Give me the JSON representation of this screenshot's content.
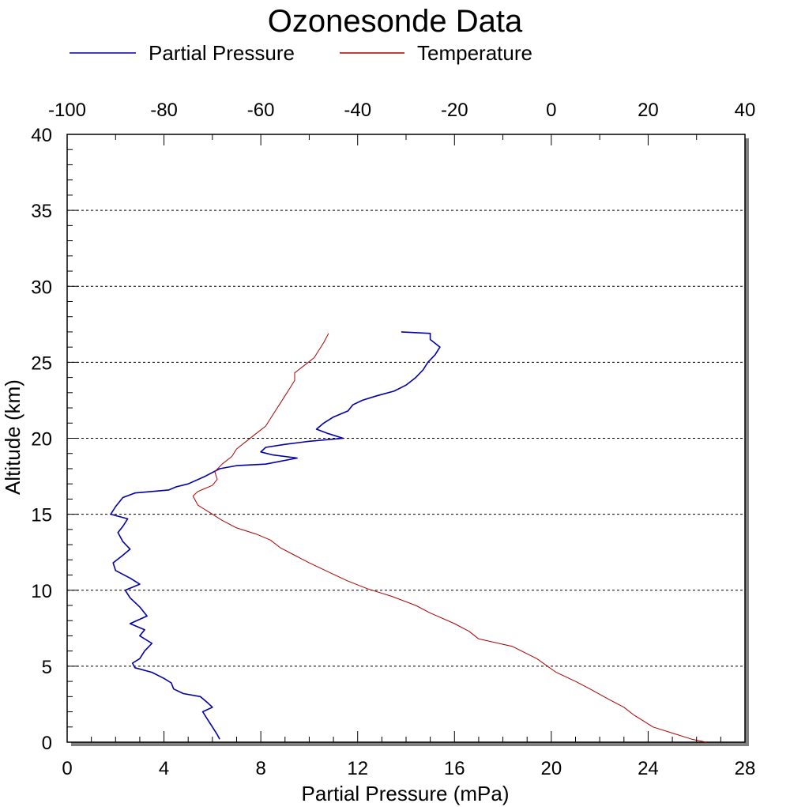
{
  "chart_data": {
    "type": "line",
    "title": "Ozonesonde Data",
    "xlabel": "Partial Pressure (mPa)",
    "ylabel": "Altitude (km)",
    "xlim": [
      0,
      28
    ],
    "x_top_lim": [
      -100,
      40
    ],
    "ylim": [
      0,
      40
    ],
    "x_ticks": [
      "0",
      "4",
      "8",
      "12",
      "16",
      "20",
      "24",
      "28"
    ],
    "x_top_ticks": [
      "-100",
      "-80",
      "-60",
      "-40",
      "-20",
      "0",
      "20",
      "40"
    ],
    "y_ticks": [
      "0",
      "5",
      "10",
      "15",
      "20",
      "25",
      "30",
      "35",
      "40"
    ],
    "grid": "horizontal dashed",
    "legend": "top",
    "series": [
      {
        "name": "Partial Pressure",
        "axis": "bottom",
        "color": "#0000aa",
        "points": [
          [
            6.3,
            0.2
          ],
          [
            6.2,
            0.5
          ],
          [
            6.0,
            1.0
          ],
          [
            5.8,
            1.5
          ],
          [
            5.6,
            2.0
          ],
          [
            6.0,
            2.3
          ],
          [
            5.8,
            2.6
          ],
          [
            5.5,
            3.0
          ],
          [
            4.8,
            3.2
          ],
          [
            4.4,
            3.5
          ],
          [
            4.3,
            3.9
          ],
          [
            4.0,
            4.2
          ],
          [
            3.5,
            4.6
          ],
          [
            2.8,
            4.9
          ],
          [
            2.7,
            5.2
          ],
          [
            3.0,
            5.5
          ],
          [
            3.2,
            6.0
          ],
          [
            3.5,
            6.5
          ],
          [
            3.0,
            7.0
          ],
          [
            3.2,
            7.4
          ],
          [
            2.6,
            7.8
          ],
          [
            3.3,
            8.3
          ],
          [
            3.0,
            8.9
          ],
          [
            2.6,
            9.5
          ],
          [
            2.4,
            10.0
          ],
          [
            3.0,
            10.4
          ],
          [
            2.6,
            10.8
          ],
          [
            2.0,
            11.3
          ],
          [
            1.9,
            11.8
          ],
          [
            2.3,
            12.3
          ],
          [
            2.6,
            12.7
          ],
          [
            2.3,
            13.2
          ],
          [
            2.1,
            13.8
          ],
          [
            2.3,
            14.2
          ],
          [
            2.5,
            14.7
          ],
          [
            1.8,
            15.0
          ],
          [
            2.0,
            15.5
          ],
          [
            2.3,
            16.1
          ],
          [
            2.8,
            16.4
          ],
          [
            3.5,
            16.5
          ],
          [
            4.2,
            16.6
          ],
          [
            4.5,
            16.8
          ],
          [
            5.0,
            17.0
          ],
          [
            5.7,
            17.5
          ],
          [
            6.3,
            18.0
          ],
          [
            7.0,
            18.2
          ],
          [
            8.2,
            18.3
          ],
          [
            9.5,
            18.7
          ],
          [
            8.5,
            18.9
          ],
          [
            8.0,
            19.1
          ],
          [
            8.2,
            19.4
          ],
          [
            9.0,
            19.6
          ],
          [
            10.0,
            19.8
          ],
          [
            11.4,
            20.0
          ],
          [
            10.8,
            20.3
          ],
          [
            10.3,
            20.6
          ],
          [
            10.6,
            21.0
          ],
          [
            11.0,
            21.4
          ],
          [
            11.6,
            21.8
          ],
          [
            11.8,
            22.2
          ],
          [
            12.2,
            22.5
          ],
          [
            12.8,
            22.8
          ],
          [
            13.5,
            23.1
          ],
          [
            14.0,
            23.5
          ],
          [
            14.4,
            24.0
          ],
          [
            14.7,
            24.5
          ],
          [
            14.9,
            25.0
          ],
          [
            15.2,
            25.5
          ],
          [
            15.4,
            26.0
          ],
          [
            15.0,
            26.5
          ],
          [
            15.0,
            26.9
          ],
          [
            13.8,
            27.0
          ]
        ]
      },
      {
        "name": "Temperature",
        "axis": "top",
        "color": "#aa0000",
        "points": [
          [
            32,
            0.0
          ],
          [
            29,
            0.2
          ],
          [
            25,
            0.6
          ],
          [
            21,
            1.0
          ],
          [
            18,
            1.6
          ],
          [
            17,
            1.8
          ],
          [
            15,
            2.3
          ],
          [
            12,
            2.8
          ],
          [
            8,
            3.5
          ],
          [
            5,
            4.0
          ],
          [
            1,
            4.6
          ],
          [
            -3,
            5.5
          ],
          [
            -8,
            6.3
          ],
          [
            -15,
            6.8
          ],
          [
            -17,
            7.3
          ],
          [
            -20,
            7.8
          ],
          [
            -25,
            8.5
          ],
          [
            -28,
            9.0
          ],
          [
            -33,
            9.6
          ],
          [
            -38,
            10.1
          ],
          [
            -42,
            10.6
          ],
          [
            -46,
            11.2
          ],
          [
            -50,
            11.8
          ],
          [
            -53,
            12.3
          ],
          [
            -56,
            12.8
          ],
          [
            -58,
            13.3
          ],
          [
            -61,
            13.7
          ],
          [
            -65,
            14.1
          ],
          [
            -68,
            14.6
          ],
          [
            -70,
            15.0
          ],
          [
            -73,
            15.6
          ],
          [
            -74,
            16.2
          ],
          [
            -73,
            16.5
          ],
          [
            -70,
            16.9
          ],
          [
            -69,
            17.3
          ],
          [
            -69.5,
            17.8
          ],
          [
            -68,
            18.3
          ],
          [
            -66,
            18.8
          ],
          [
            -65,
            19.3
          ],
          [
            -63,
            19.8
          ],
          [
            -61,
            20.3
          ],
          [
            -59,
            20.8
          ],
          [
            -58,
            21.3
          ],
          [
            -57,
            21.8
          ],
          [
            -56,
            22.3
          ],
          [
            -55,
            22.8
          ],
          [
            -54,
            23.3
          ],
          [
            -53,
            23.8
          ],
          [
            -53,
            24.3
          ],
          [
            -51,
            24.8
          ],
          [
            -49,
            25.3
          ],
          [
            -48,
            25.8
          ],
          [
            -47,
            26.3
          ],
          [
            -46,
            26.9
          ]
        ]
      }
    ]
  }
}
